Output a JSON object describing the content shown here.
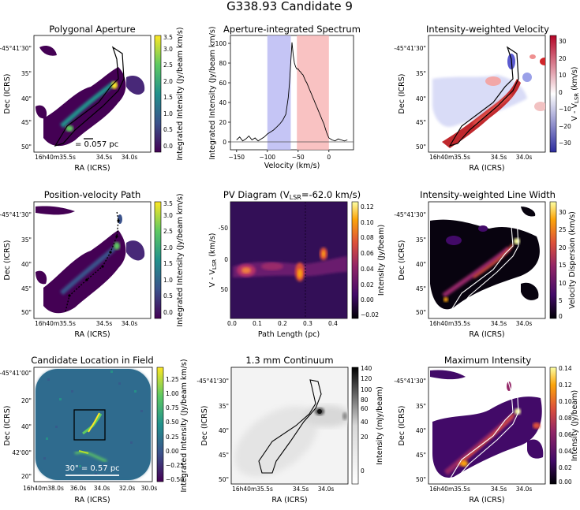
{
  "figure": {
    "title": "G338.93 Candidate 9",
    "colors": {
      "viridis": [
        "#440154",
        "#3b528b",
        "#21918c",
        "#5ec962",
        "#fde725"
      ],
      "inferno": [
        "#000004",
        "#420a68",
        "#932667",
        "#dd513a",
        "#fca50a",
        "#fcffa4"
      ],
      "bwr": [
        "#2c2c9e",
        "#ffffff",
        "#b40426"
      ],
      "gray": [
        "#ffffff",
        "#000000"
      ],
      "blue_band": "#b7b7f2",
      "red_band": "#f7b3b3",
      "outline": "#000000"
    }
  },
  "chart_data": [
    {
      "id": "p1",
      "type": "heatmap",
      "title": "Polygonal Aperture",
      "xlabel": "RA (ICRS)",
      "ylabel": "Dec (ICRS)",
      "xticks": [
        "16h40m35.5s",
        "34.5s",
        "34.0s"
      ],
      "yticks": [
        "-45°41'30\"",
        "35\"",
        "40\"",
        "45\"",
        "50\""
      ],
      "cmap": "viridis",
      "colorbar": {
        "label": "Integrated Intensity (Jy/beam km/s)",
        "range": [
          0,
          3.6
        ],
        "ticks": [
          "0.0",
          "0.5",
          "1.0",
          "1.5",
          "2.0",
          "2.5",
          "3.0",
          "3.5"
        ]
      },
      "annotation": "= 0.057 pc"
    },
    {
      "id": "p2",
      "type": "line",
      "title": "Aperture-integrated Spectrum",
      "xlabel": "Velocity (km/s)",
      "ylabel": "Integrated Intensity (Jy/beam km/s)",
      "xlim": [
        -160,
        40
      ],
      "ylim": [
        -8,
        108
      ],
      "xticks": [
        -150,
        -100,
        -50,
        0
      ],
      "yticks": [
        0,
        20,
        40,
        60,
        80,
        100
      ],
      "blue_band": [
        -100,
        -62
      ],
      "red_band": [
        -52,
        0
      ],
      "x": [
        -150,
        -145,
        -140,
        -135,
        -130,
        -125,
        -120,
        -115,
        -110,
        -105,
        -100,
        -95,
        -90,
        -85,
        -80,
        -75,
        -70,
        -66,
        -64,
        -62,
        -60,
        -58,
        -56,
        -54,
        -52,
        -50,
        -48,
        -46,
        -44,
        -42,
        -40,
        -38,
        -36,
        -34,
        -32,
        -30,
        -28,
        -26,
        -24,
        -22,
        -20,
        -18,
        -16,
        -14,
        -12,
        -10,
        -8,
        -6,
        -4,
        -2,
        0,
        5,
        10,
        15,
        20,
        25,
        30
      ],
      "y": [
        2,
        5,
        1,
        3,
        6,
        2,
        4,
        1,
        3,
        5,
        8,
        10,
        12,
        15,
        18,
        22,
        28,
        45,
        60,
        80,
        101,
        88,
        80,
        76,
        74,
        74,
        72,
        71,
        69,
        68,
        65,
        62,
        60,
        57,
        54,
        51,
        48,
        45,
        42,
        39,
        36,
        33,
        30,
        27,
        24,
        21,
        18,
        14,
        10,
        7,
        4,
        2,
        1,
        3,
        2,
        1,
        2
      ]
    },
    {
      "id": "p3",
      "type": "heatmap",
      "title": "Intensity-weighted Velocity",
      "xlabel": "RA (ICRS)",
      "ylabel": "Dec (ICRS)",
      "xticks": [
        "16h40m35.5s",
        "34.5s",
        "34.0s"
      ],
      "yticks": [
        "-45°41'30\"",
        "35\"",
        "40\"",
        "45\"",
        "50\""
      ],
      "cmap": "bwr",
      "colorbar": {
        "label": "V - VLSR (km/s)",
        "range": [
          -35,
          35
        ],
        "ticks": [
          "30",
          "20",
          "10",
          "0",
          "−10",
          "−20",
          "−30"
        ]
      }
    },
    {
      "id": "p4",
      "type": "heatmap",
      "title": "Position-velocity Path",
      "xlabel": "RA (ICRS)",
      "ylabel": "Dec (ICRS)",
      "xticks": [
        "16h40m35.5s",
        "34.5s",
        "34.0s"
      ],
      "yticks": [
        "-45°41'30\"",
        "35\"",
        "40\"",
        "45\"",
        "50\""
      ],
      "cmap": "viridis",
      "colorbar": {
        "label": "Integrated Intensity (Jy/beam km/s)",
        "range": [
          0,
          3.6
        ],
        "ticks": [
          "0.0",
          "0.5",
          "1.0",
          "1.5",
          "2.0",
          "2.5",
          "3.0",
          "3.5"
        ]
      }
    },
    {
      "id": "p5",
      "type": "heatmap",
      "title": "PV Diagram (VLSR=-62.0 km/s)",
      "xlabel": "Path Length (pc)",
      "ylabel": "V - VLSR (km/s)",
      "xlim": [
        0,
        0.46
      ],
      "ylim": [
        -100,
        100
      ],
      "xticks": [
        "0.0",
        "0.1",
        "0.2",
        "0.3",
        "0.4"
      ],
      "yticks": [
        "-50",
        "0",
        "50"
      ],
      "cmap": "inferno",
      "colorbar": {
        "label": "Intensity (Jy/beam)",
        "range": [
          -0.02,
          0.13
        ],
        "ticks": [
          "0.12",
          "0.10",
          "0.08",
          "0.06",
          "0.04",
          "0.02",
          "0.00",
          "−0.02"
        ]
      }
    },
    {
      "id": "p6",
      "type": "heatmap",
      "title": "Intensity-weighted Line Width",
      "xlabel": "RA (ICRS)",
      "ylabel": "Dec (ICRS)",
      "xticks": [
        "16h40m35.5s",
        "34.5s",
        "34.0s"
      ],
      "yticks": [
        "-45°41'30\"",
        "35\"",
        "40\"",
        "45\"",
        "50\""
      ],
      "cmap": "inferno",
      "colorbar": {
        "label": "Velocity Dispersion (km/s)",
        "range": [
          0,
          33
        ],
        "ticks": [
          "30",
          "25",
          "20",
          "15",
          "10",
          "5",
          "0"
        ]
      }
    },
    {
      "id": "p7",
      "type": "heatmap",
      "title": "Candidate Location in Field",
      "xlabel": "RA (ICRS)",
      "ylabel": "Dec (ICRS)",
      "xticks": [
        "16h40m38.0s",
        "36.0s",
        "34.0s",
        "32.0s",
        "30.0s"
      ],
      "yticks": [
        "-45°41'00\"",
        "20\"",
        "40\"",
        "42'00\"",
        "20\""
      ],
      "cmap": "viridis",
      "colorbar": {
        "label": "Integrated Intensity (Jy/beam km/s)",
        "range": [
          -0.62,
          1.38
        ],
        "ticks": [
          "1.25",
          "1.00",
          "0.75",
          "0.50",
          "0.25",
          "0.00",
          "−0.25",
          "−0.50"
        ]
      },
      "annotation": "30\" = 0.57 pc"
    },
    {
      "id": "p8",
      "type": "heatmap",
      "title": "1.3 mm Continuum",
      "xlabel": "RA (ICRS)",
      "ylabel": "Dec (ICRS)",
      "xticks": [
        "16h40m35.5s",
        "34.5s",
        "34.0s"
      ],
      "yticks": [
        "-45°41'30\"",
        "35\"",
        "40\"",
        "45\"",
        "50\""
      ],
      "cmap": "gray",
      "colorbar": {
        "label": "Intensity (mJy/beam)",
        "range": [
          -10,
          140
        ],
        "ticks": [
          "140",
          "120",
          "100",
          "80",
          "60",
          "40",
          "20",
          "0"
        ]
      }
    },
    {
      "id": "p9",
      "type": "heatmap",
      "title": "Maximum Intensity",
      "xlabel": "RA (ICRS)",
      "ylabel": "Dec (ICRS)",
      "xticks": [
        "16h40m35.5s",
        "34.5s",
        "34.0s"
      ],
      "yticks": [
        "-45°41'30\"",
        "35\"",
        "40\"",
        "45\"",
        "50\""
      ],
      "cmap": "inferno",
      "colorbar": {
        "label": "Intensity (Jy/beam)",
        "range": [
          0,
          0.14
        ],
        "ticks": [
          "0.14",
          "0.12",
          "0.10",
          "0.08",
          "0.06",
          "0.04",
          "0.02",
          "0.00"
        ]
      }
    }
  ]
}
